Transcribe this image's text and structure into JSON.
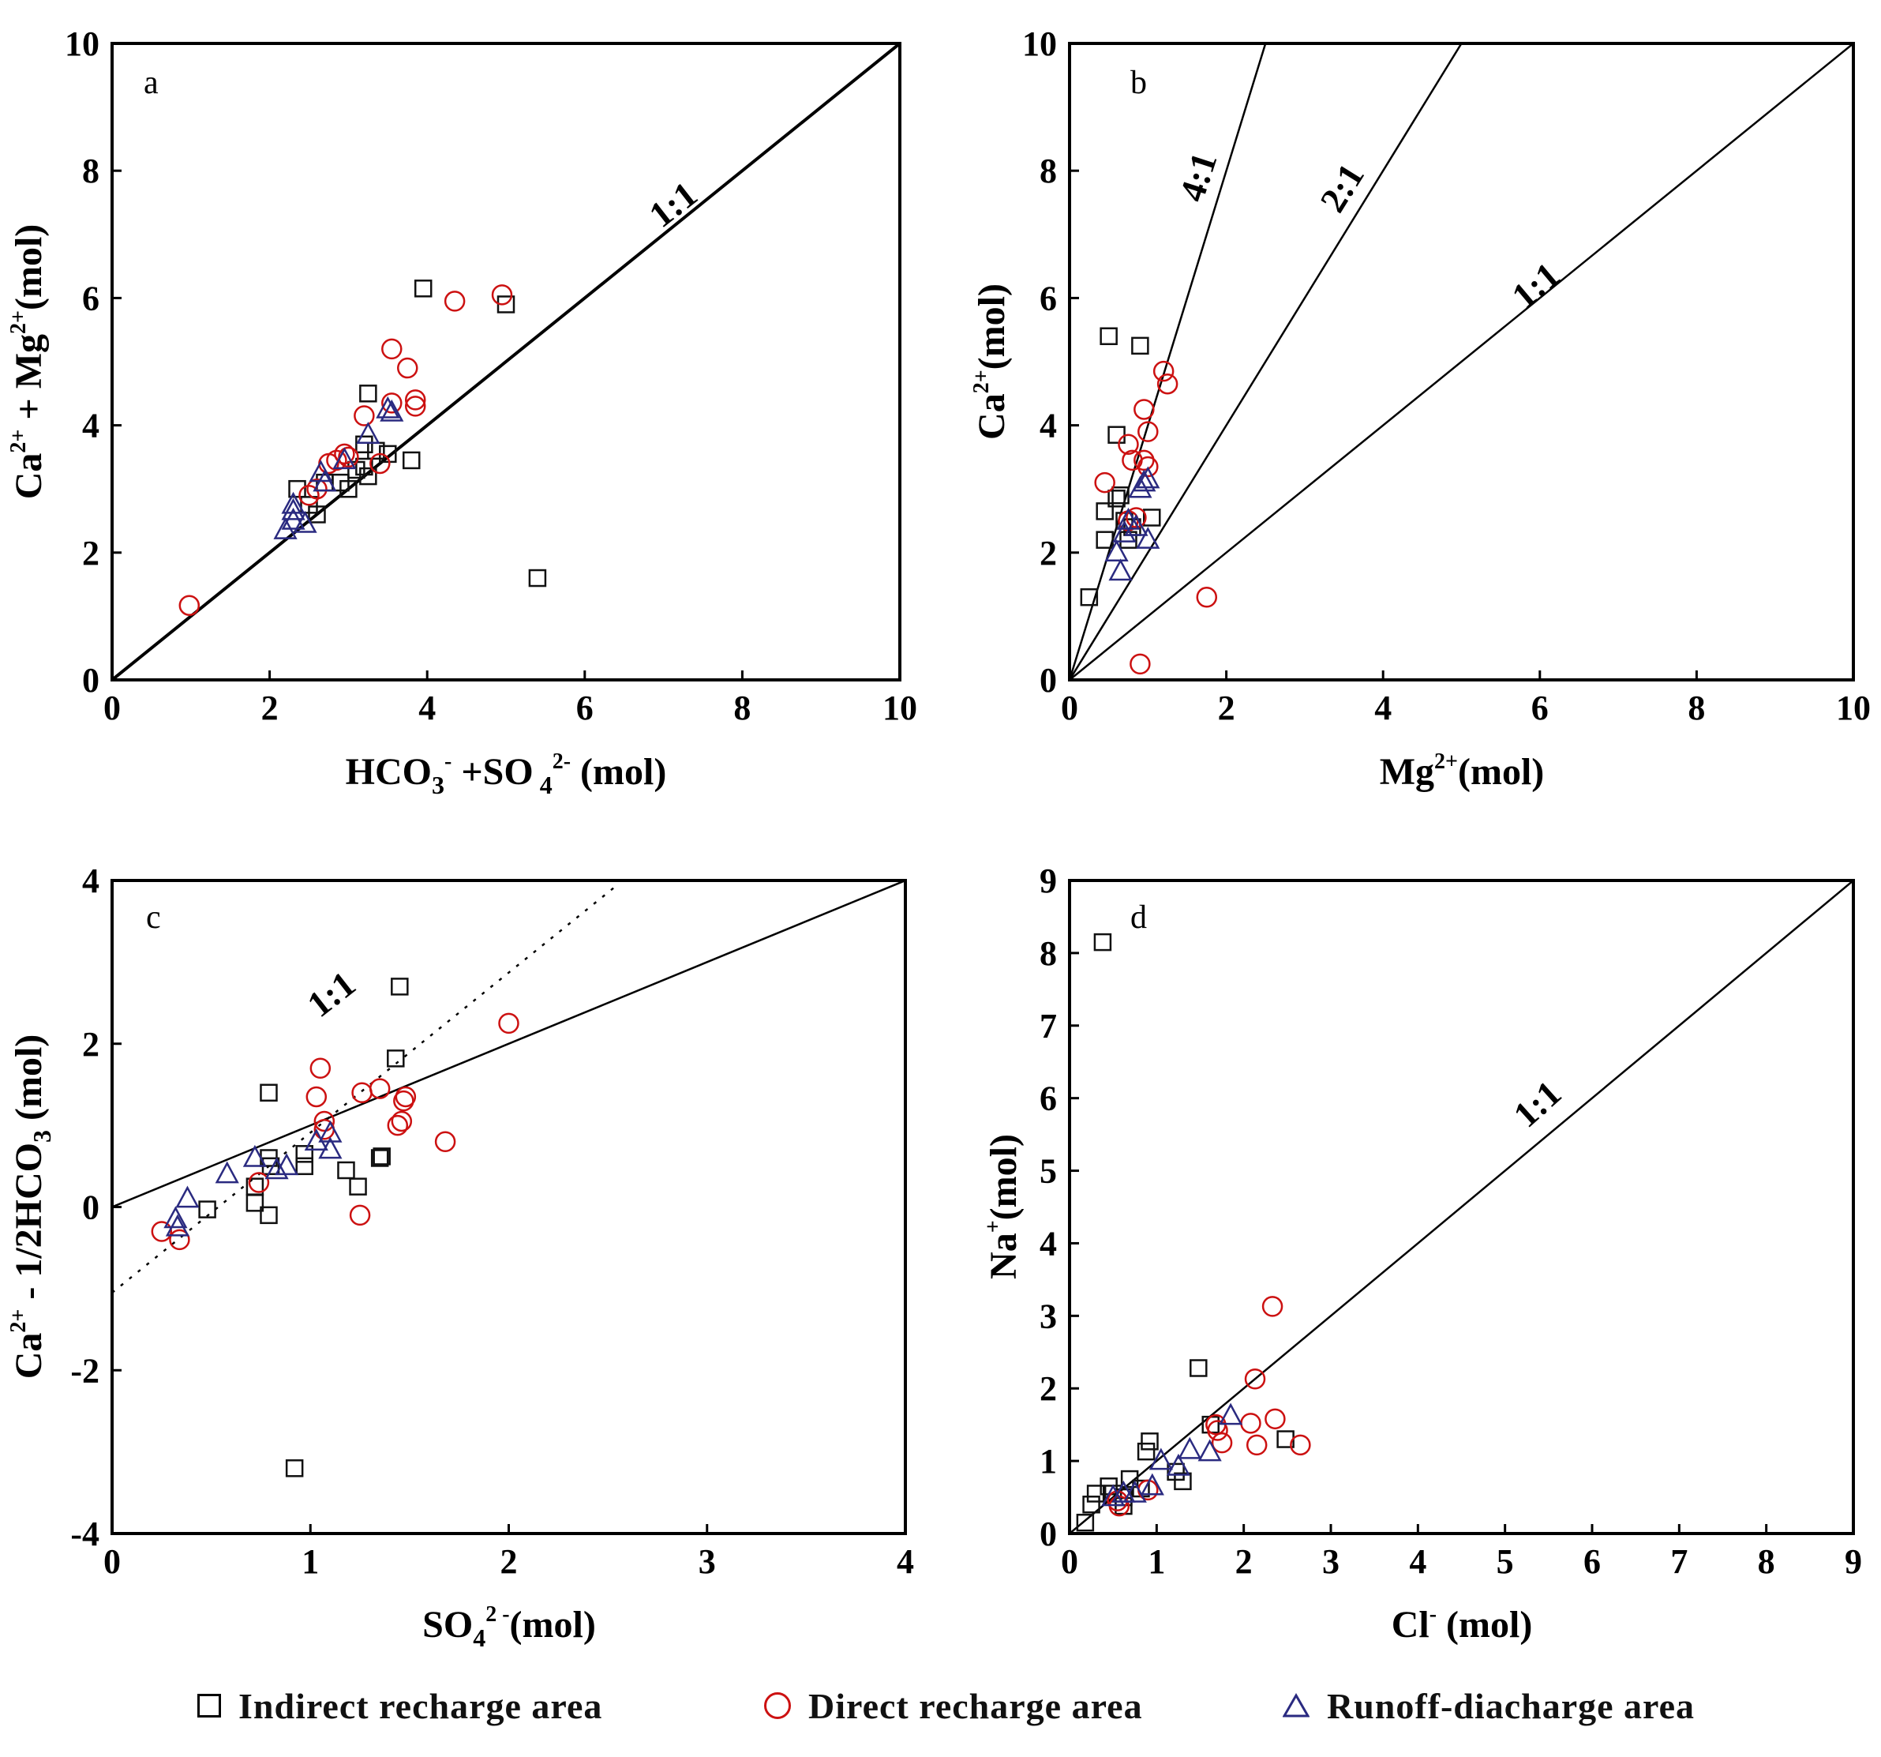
{
  "colors": {
    "indirect": "#111111",
    "direct": "#cc1111",
    "runoff": "#2a2a80",
    "axes": "#000000"
  },
  "legend": {
    "items": [
      {
        "key": "indirect",
        "marker": "square",
        "label": "Indirect recharge area"
      },
      {
        "key": "direct",
        "marker": "circle",
        "label": "Direct recharge area"
      },
      {
        "key": "runoff",
        "marker": "triangle",
        "label": "Runoff-diacharge area"
      }
    ]
  },
  "chart_data": [
    {
      "type": "scatter",
      "panel": "a",
      "xlabel": "HCO3- + SO4 2- (mol)",
      "ylabel": "Ca2+ + Mg2+ (mol)",
      "xlim": [
        0,
        10
      ],
      "ylim": [
        0,
        10
      ],
      "xticks": [
        "0",
        "2",
        "4",
        "6",
        "8",
        "10"
      ],
      "yticks": [
        "0",
        "2",
        "4",
        "6",
        "8",
        "10"
      ],
      "ref_lines": [
        {
          "label": "1:1",
          "points": [
            [
              0,
              0
            ],
            [
              10,
              10
            ]
          ],
          "style": "solid"
        }
      ],
      "series": [
        {
          "name": "Indirect recharge area",
          "points": [
            [
              3.95,
              6.15
            ],
            [
              5.0,
              5.9
            ],
            [
              3.25,
              4.5
            ],
            [
              3.2,
              3.7
            ],
            [
              3.35,
              3.6
            ],
            [
              3.5,
              3.55
            ],
            [
              3.2,
              3.35
            ],
            [
              3.25,
              3.2
            ],
            [
              3.0,
              3.0
            ],
            [
              2.9,
              3.1
            ],
            [
              2.35,
              3.0
            ],
            [
              2.5,
              2.75
            ],
            [
              2.6,
              2.6
            ],
            [
              3.8,
              3.45
            ],
            [
              5.4,
              1.6
            ],
            [
              3.1,
              3.3
            ],
            [
              2.7,
              3.1
            ]
          ]
        },
        {
          "name": "Direct recharge area",
          "points": [
            [
              0.98,
              1.17
            ],
            [
              4.95,
              6.05
            ],
            [
              4.35,
              5.95
            ],
            [
              3.55,
              5.2
            ],
            [
              3.75,
              4.9
            ],
            [
              3.85,
              4.4
            ],
            [
              3.85,
              4.3
            ],
            [
              3.55,
              4.35
            ],
            [
              3.2,
              4.15
            ],
            [
              3.4,
              3.4
            ],
            [
              2.95,
              3.55
            ],
            [
              2.85,
              3.45
            ],
            [
              2.75,
              3.4
            ],
            [
              2.6,
              3.0
            ],
            [
              2.5,
              2.9
            ],
            [
              3.0,
              3.5
            ]
          ]
        },
        {
          "name": "Runoff-diacharge area",
          "points": [
            [
              3.55,
              4.2
            ],
            [
              3.5,
              4.25
            ],
            [
              3.25,
              3.85
            ],
            [
              2.65,
              3.25
            ],
            [
              2.95,
              3.45
            ],
            [
              2.3,
              2.65
            ],
            [
              2.3,
              2.5
            ],
            [
              2.45,
              2.45
            ],
            [
              2.2,
              2.35
            ],
            [
              2.3,
              2.75
            ],
            [
              2.7,
              3.1
            ]
          ]
        }
      ],
      "annotations": [
        {
          "text": "1:1"
        }
      ]
    },
    {
      "type": "scatter",
      "panel": "b",
      "xlabel": "Mg2+ (mol)",
      "ylabel": "Ca2+ (mol)",
      "xlim": [
        0,
        10
      ],
      "ylim": [
        0,
        10
      ],
      "xticks": [
        "0",
        "2",
        "4",
        "6",
        "8",
        "10"
      ],
      "yticks": [
        "0",
        "2",
        "4",
        "6",
        "8",
        "10"
      ],
      "ref_lines": [
        {
          "label": "4:1",
          "points": [
            [
              0,
              0
            ],
            [
              2.5,
              10
            ]
          ],
          "style": "solid"
        },
        {
          "label": "2:1",
          "points": [
            [
              0,
              0
            ],
            [
              5,
              10
            ]
          ],
          "style": "solid"
        },
        {
          "label": "1:1",
          "points": [
            [
              0,
              0
            ],
            [
              10,
              10
            ]
          ],
          "style": "solid"
        }
      ],
      "series": [
        {
          "name": "Indirect recharge area",
          "points": [
            [
              0.5,
              5.4
            ],
            [
              0.9,
              5.25
            ],
            [
              0.6,
              3.85
            ],
            [
              0.6,
              2.85
            ],
            [
              0.65,
              2.9
            ],
            [
              0.45,
              2.65
            ],
            [
              0.7,
              2.5
            ],
            [
              0.45,
              2.2
            ],
            [
              0.75,
              2.2
            ],
            [
              1.05,
              2.55
            ],
            [
              0.25,
              1.3
            ],
            [
              0.8,
              2.4
            ]
          ]
        },
        {
          "name": "Direct recharge area",
          "points": [
            [
              1.2,
              4.85
            ],
            [
              1.25,
              4.65
            ],
            [
              0.95,
              4.25
            ],
            [
              1.0,
              3.9
            ],
            [
              0.75,
              3.7
            ],
            [
              0.45,
              3.1
            ],
            [
              0.8,
              3.45
            ],
            [
              0.95,
              3.45
            ],
            [
              1.0,
              3.35
            ],
            [
              0.85,
              2.55
            ],
            [
              0.75,
              2.5
            ],
            [
              1.75,
              1.3
            ],
            [
              0.9,
              0.25
            ]
          ]
        },
        {
          "name": "Runoff-diacharge area",
          "points": [
            [
              0.95,
              3.1
            ],
            [
              1.0,
              3.15
            ],
            [
              0.9,
              3.0
            ],
            [
              0.75,
              2.5
            ],
            [
              0.85,
              2.4
            ],
            [
              0.6,
              2.0
            ],
            [
              0.65,
              1.7
            ],
            [
              1.0,
              2.2
            ],
            [
              0.7,
              2.3
            ]
          ]
        }
      ],
      "annotations": [
        {
          "text": "4:1"
        },
        {
          "text": "2:1"
        },
        {
          "text": "1:1"
        }
      ]
    },
    {
      "type": "scatter",
      "panel": "c",
      "xlabel": "SO4 2- (mol)",
      "ylabel": "Ca2+ - 1/2HCO3 (mol)",
      "xlim": [
        0,
        4
      ],
      "ylim": [
        -4,
        4
      ],
      "xticks": [
        "0",
        "1",
        "2",
        "3",
        "4"
      ],
      "yticks": [
        "-4",
        "-2",
        "0",
        "2",
        "4"
      ],
      "ref_lines": [
        {
          "label": "1:1",
          "points": [
            [
              0,
              0
            ],
            [
              4,
              4
            ]
          ],
          "style": "solid"
        },
        {
          "label": "",
          "points": [
            [
              0,
              -1.05
            ],
            [
              2.55,
              3.95
            ]
          ],
          "style": "dotted"
        }
      ],
      "series": [
        {
          "name": "Indirect recharge area",
          "points": [
            [
              1.45,
              2.7
            ],
            [
              1.43,
              1.82
            ],
            [
              0.79,
              1.4
            ],
            [
              0.97,
              0.65
            ],
            [
              0.97,
              0.5
            ],
            [
              0.79,
              0.6
            ],
            [
              0.8,
              0.5
            ],
            [
              1.18,
              0.45
            ],
            [
              1.24,
              0.25
            ],
            [
              1.35,
              0.6
            ],
            [
              1.36,
              0.62
            ],
            [
              0.72,
              0.05
            ],
            [
              0.79,
              -0.1
            ],
            [
              0.48,
              -0.03
            ],
            [
              0.72,
              0.25
            ],
            [
              0.92,
              -3.2
            ]
          ]
        },
        {
          "name": "Direct recharge area",
          "points": [
            [
              1.05,
              1.7
            ],
            [
              1.03,
              1.35
            ],
            [
              1.26,
              1.4
            ],
            [
              1.35,
              1.45
            ],
            [
              1.48,
              1.35
            ],
            [
              1.47,
              1.3
            ],
            [
              1.07,
              1.05
            ],
            [
              1.07,
              0.95
            ],
            [
              1.44,
              1.0
            ],
            [
              1.46,
              1.05
            ],
            [
              1.68,
              0.8
            ],
            [
              2.0,
              2.25
            ],
            [
              0.74,
              0.3
            ],
            [
              1.25,
              -0.1
            ],
            [
              0.25,
              -0.3
            ],
            [
              0.34,
              -0.4
            ]
          ]
        },
        {
          "name": "Runoff-diacharge area",
          "points": [
            [
              0.72,
              0.6
            ],
            [
              0.58,
              0.4
            ],
            [
              0.88,
              0.5
            ],
            [
              1.1,
              0.9
            ],
            [
              1.03,
              0.8
            ],
            [
              1.1,
              0.7
            ],
            [
              0.83,
              0.45
            ],
            [
              0.38,
              0.1
            ],
            [
              0.32,
              -0.15
            ],
            [
              0.33,
              -0.25
            ]
          ]
        }
      ],
      "annotations": [
        {
          "text": "1:1"
        }
      ]
    },
    {
      "type": "scatter",
      "panel": "d",
      "xlabel": "Cl- (mol)",
      "ylabel": "Na+ (mol)",
      "xlim": [
        0,
        9
      ],
      "ylim": [
        0,
        9
      ],
      "xticks": [
        "0",
        "1",
        "2",
        "3",
        "4",
        "5",
        "6",
        "7",
        "8",
        "9"
      ],
      "yticks": [
        "0",
        "1",
        "2",
        "3",
        "4",
        "5",
        "6",
        "7",
        "8",
        "9"
      ],
      "ref_lines": [
        {
          "label": "1:1",
          "points": [
            [
              0,
              0
            ],
            [
              9,
              9
            ]
          ],
          "style": "solid"
        }
      ],
      "series": [
        {
          "name": "Indirect recharge area",
          "points": [
            [
              0.38,
              8.15
            ],
            [
              1.48,
              2.28
            ],
            [
              0.92,
              1.27
            ],
            [
              0.88,
              1.13
            ],
            [
              1.62,
              1.5
            ],
            [
              2.48,
              1.3
            ],
            [
              1.3,
              0.72
            ],
            [
              0.69,
              0.75
            ],
            [
              0.45,
              0.65
            ],
            [
              0.3,
              0.55
            ],
            [
              0.25,
              0.4
            ],
            [
              0.18,
              0.15
            ],
            [
              0.5,
              0.55
            ],
            [
              0.62,
              0.38
            ],
            [
              0.62,
              0.5
            ],
            [
              1.22,
              0.85
            ],
            [
              0.82,
              0.62
            ]
          ]
        },
        {
          "name": "Direct recharge area",
          "points": [
            [
              2.33,
              3.13
            ],
            [
              2.13,
              2.13
            ],
            [
              2.36,
              1.58
            ],
            [
              2.08,
              1.52
            ],
            [
              2.15,
              1.22
            ],
            [
              2.65,
              1.22
            ],
            [
              1.68,
              1.5
            ],
            [
              1.75,
              1.25
            ],
            [
              0.57,
              0.38
            ],
            [
              0.55,
              0.45
            ],
            [
              0.9,
              0.6
            ],
            [
              1.7,
              1.42
            ]
          ]
        },
        {
          "name": "Runoff-diacharge area",
          "points": [
            [
              1.85,
              1.62
            ],
            [
              1.61,
              1.12
            ],
            [
              1.38,
              1.15
            ],
            [
              1.05,
              1.0
            ],
            [
              1.25,
              0.92
            ],
            [
              0.95,
              0.65
            ],
            [
              0.62,
              0.55
            ],
            [
              0.75,
              0.55
            ],
            [
              0.5,
              0.5
            ]
          ]
        }
      ],
      "annotations": [
        {
          "text": "1:1"
        }
      ]
    }
  ]
}
